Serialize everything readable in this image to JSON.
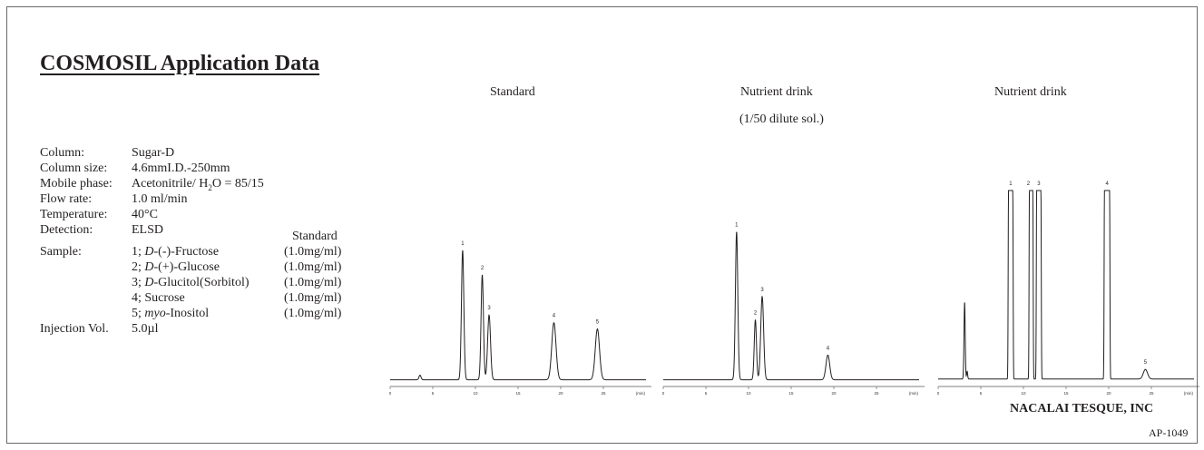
{
  "title": "COSMOSIL Application Data",
  "conditions": [
    {
      "label": "Column:",
      "value": "Sugar-D"
    },
    {
      "label": "Column size:",
      "value": "4.6mmI.D.-250mm"
    },
    {
      "label": "Mobile phase:",
      "value_pre": "Acetonitrile/ H",
      "value_sub": "2",
      "value_post": "O = 85/15"
    },
    {
      "label": "Flow rate:",
      "value": "1.0 ml/min"
    },
    {
      "label": "Temperature:",
      "value": "40°C"
    },
    {
      "label": "Detection:",
      "value": "ELSD"
    }
  ],
  "sample": {
    "label": "Sample:",
    "column_header": "Standard",
    "items": [
      {
        "num": "1; ",
        "italic": "D",
        "name": "-(-)-Fructose",
        "conc": "(1.0mg/ml)"
      },
      {
        "num": "2; ",
        "italic": "D",
        "name": "-(+)-Glucose",
        "conc": "(1.0mg/ml)"
      },
      {
        "num": "3; ",
        "italic": "D",
        "name": "-Glucitol(Sorbitol)",
        "conc": "(1.0mg/ml)"
      },
      {
        "num": "4; ",
        "italic": "",
        "name": "Sucrose",
        "conc": "(1.0mg/ml)"
      },
      {
        "num": "5; ",
        "italic": "myo",
        "name": "-Inositol",
        "conc": "(1.0mg/ml)"
      }
    ]
  },
  "injection": {
    "label": "Injection Vol.",
    "value": "5.0µl"
  },
  "company": "NACALAI TESQUE, INC",
  "code": "AP-1049",
  "chart_data": [
    {
      "type": "line",
      "title": "Standard",
      "x_unit": "(min)",
      "xlim": [
        0,
        30
      ],
      "x_ticks": [
        "0",
        "5",
        "10",
        "15",
        "20",
        "25"
      ],
      "ylim": [
        0,
        100
      ],
      "baseline": 2,
      "peaks": [
        {
          "label": "",
          "x": 3.5,
          "y": 5,
          "w": 0.12
        },
        {
          "label": "1",
          "x": 8.5,
          "y": 86,
          "w": 0.14
        },
        {
          "label": "2",
          "x": 10.8,
          "y": 70,
          "w": 0.14
        },
        {
          "label": "3",
          "x": 11.6,
          "y": 44,
          "w": 0.17
        },
        {
          "label": "4",
          "x": 19.2,
          "y": 39,
          "w": 0.25
        },
        {
          "label": "5",
          "x": 24.3,
          "y": 35,
          "w": 0.25
        }
      ]
    },
    {
      "type": "line",
      "title": "Nutrient drink",
      "subtitle": "(1/50 dilute sol.)",
      "x_unit": "(min)",
      "xlim": [
        0,
        30
      ],
      "x_ticks": [
        "0",
        "5",
        "10",
        "15",
        "20",
        "25"
      ],
      "ylim": [
        0,
        100
      ],
      "baseline": 2,
      "peaks": [
        {
          "label": "1",
          "x": 8.6,
          "y": 98,
          "w": 0.14
        },
        {
          "label": "2",
          "x": 10.8,
          "y": 41,
          "w": 0.13
        },
        {
          "label": "3",
          "x": 11.6,
          "y": 56,
          "w": 0.17
        },
        {
          "label": "4",
          "x": 19.3,
          "y": 18,
          "w": 0.22
        }
      ]
    },
    {
      "type": "line",
      "title": "Nutrient drink",
      "x_unit": "(min)",
      "xlim": [
        0,
        30
      ],
      "x_ticks": [
        "0",
        "5",
        "10",
        "15",
        "20",
        "25"
      ],
      "ylim": [
        0,
        100
      ],
      "baseline": 2,
      "peaks": [
        {
          "label": "",
          "x": 3.1,
          "y": 42,
          "w": 0.07
        },
        {
          "label": "",
          "x": 3.4,
          "y": 6,
          "w": 0.06
        },
        {
          "label": "1",
          "x": 8.5,
          "y": 100,
          "w": 0.25,
          "flat": true
        },
        {
          "label": "2",
          "x": 10.9,
          "y": 100,
          "w": 0.2,
          "flat": true
        },
        {
          "label": "3",
          "x": 11.8,
          "y": 100,
          "w": 0.25,
          "flat": true
        },
        {
          "label": "4",
          "x": 19.8,
          "y": 100,
          "w": 0.3,
          "flat": true
        },
        {
          "label": "5",
          "x": 24.3,
          "y": 7,
          "w": 0.25
        }
      ]
    }
  ]
}
